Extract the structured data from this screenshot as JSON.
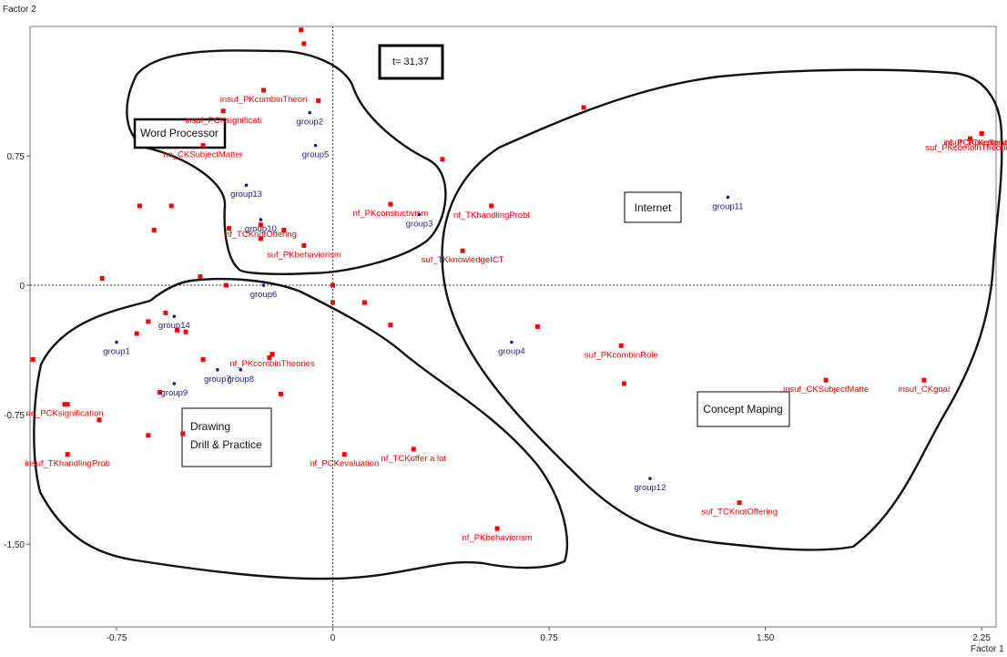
{
  "chart_data": {
    "type": "scatter",
    "xlabel": "Factor 1",
    "ylabel": "Factor 2",
    "xlim": [
      -1.05,
      2.3
    ],
    "ylim": [
      -1.98,
      1.5
    ],
    "x_ticks": [
      -0.75,
      0,
      0.75,
      1.5,
      2.25
    ],
    "x_tick_labels": [
      "-0.75",
      "0",
      "0.75",
      "1.50",
      "2.25"
    ],
    "y_ticks": [
      0.75,
      0,
      -0.75,
      -1.5
    ],
    "y_tick_labels": [
      "0.75",
      "0",
      "-0.75",
      "-1.50"
    ],
    "grid": false,
    "zero_lines": "dotted",
    "t_statistic": "t= 31,37",
    "colors": {
      "modalities": "#ff0000",
      "groups": "#1c1c8c"
    },
    "cluster_labels": [
      {
        "name": "word-processor",
        "lines": [
          "Word Processor"
        ]
      },
      {
        "name": "internet",
        "lines": [
          "Internet"
        ]
      },
      {
        "name": "concept-maping",
        "lines": [
          "Concept Maping"
        ]
      },
      {
        "name": "drawing-drill-practice",
        "lines": [
          "Drawing",
          "Drill & Practice"
        ]
      }
    ],
    "groups": [
      {
        "label": "group1",
        "x": -0.75,
        "y": -0.33
      },
      {
        "label": "group2",
        "x": -0.08,
        "y": 1.0
      },
      {
        "label": "group3",
        "x": 0.3,
        "y": 0.41
      },
      {
        "label": "group4",
        "x": 0.62,
        "y": -0.33
      },
      {
        "label": "group5",
        "x": -0.06,
        "y": 0.81
      },
      {
        "label": "group6",
        "x": -0.24,
        "y": 0.0
      },
      {
        "label": "group7",
        "x": -0.4,
        "y": -0.49
      },
      {
        "label": "group8",
        "x": -0.32,
        "y": -0.49
      },
      {
        "label": "group9",
        "x": -0.55,
        "y": -0.57
      },
      {
        "label": "group10",
        "x": -0.25,
        "y": 0.38
      },
      {
        "label": "group11",
        "x": 1.37,
        "y": 0.51
      },
      {
        "label": "group12",
        "x": 1.1,
        "y": -1.12
      },
      {
        "label": "group13",
        "x": -0.3,
        "y": 0.58
      },
      {
        "label": "group14",
        "x": -0.55,
        "y": -0.18
      }
    ],
    "modalities": [
      {
        "label": "insuf_PCKsignificati",
        "x": -0.38,
        "y": 1.01
      },
      {
        "label": "insuf_PKcombinTheori",
        "x": -0.24,
        "y": 1.13
      },
      {
        "label": "ne_CKSubjectMatter",
        "x": -0.45,
        "y": 0.81
      },
      {
        "label": "nf_TCKnotOffering",
        "x": -0.25,
        "y": 0.35
      },
      {
        "label": "suf_PKbehaviorism",
        "x": -0.1,
        "y": 0.23
      },
      {
        "label": "nf_PKconstuctivism",
        "x": 0.2,
        "y": 0.47
      },
      {
        "label": "nf_TKhandlingProbl",
        "x": 0.55,
        "y": 0.46
      },
      {
        "label": "suf_TKknowledgeICT",
        "x": 0.45,
        "y": 0.2
      },
      {
        "label": "insuf_TCKoffer a lot",
        "x": 2.25,
        "y": 0.88
      },
      {
        "label": "suf_PKcombinTheories",
        "x": 2.21,
        "y": 0.85
      },
      {
        "label": "nf_PCKpreparation",
        "x": 2.25,
        "y": 0.88
      },
      {
        "label": "suf_PKcombinRole",
        "x": 1.0,
        "y": -0.35
      },
      {
        "label": "insuf_CKSubjectMatte",
        "x": 1.71,
        "y": -0.55
      },
      {
        "label": "insuf_CKgoal",
        "x": 2.05,
        "y": -0.55
      },
      {
        "label": "suf_TCKnotOffering",
        "x": 1.41,
        "y": -1.26
      },
      {
        "label": "nf_PKcombinTheories",
        "x": -0.21,
        "y": -0.4
      },
      {
        "label": "ne_PCKsignification",
        "x": -0.93,
        "y": -0.69
      },
      {
        "label": "insuf_TKhandlingProb",
        "x": -0.92,
        "y": -0.98
      },
      {
        "label": "nf_PCKevaluation",
        "x": 0.04,
        "y": -0.98
      },
      {
        "label": "nf_TCKoffer a lot",
        "x": 0.28,
        "y": -0.95
      },
      {
        "label": "nf_PKbehaviorism",
        "x": 0.57,
        "y": -1.41
      }
    ],
    "unlabeled_points": [
      {
        "x": -0.11,
        "y": 1.48
      },
      {
        "x": -0.1,
        "y": 1.4
      },
      {
        "x": -0.05,
        "y": 1.07
      },
      {
        "x": 0.87,
        "y": 1.03
      },
      {
        "x": 0.38,
        "y": 0.73
      },
      {
        "x": -0.67,
        "y": 0.46
      },
      {
        "x": -0.56,
        "y": 0.46
      },
      {
        "x": -0.62,
        "y": 0.32
      },
      {
        "x": -0.36,
        "y": 0.33
      },
      {
        "x": -0.17,
        "y": 0.32
      },
      {
        "x": -0.25,
        "y": 0.27
      },
      {
        "x": -0.8,
        "y": 0.04
      },
      {
        "x": -0.46,
        "y": 0.05
      },
      {
        "x": -0.37,
        "y": 0.0
      },
      {
        "x": 0.0,
        "y": 0.0
      },
      {
        "x": 0.0,
        "y": -0.1
      },
      {
        "x": 0.11,
        "y": -0.1
      },
      {
        "x": 0.2,
        "y": -0.23
      },
      {
        "x": -0.58,
        "y": -0.16
      },
      {
        "x": -0.64,
        "y": -0.21
      },
      {
        "x": -0.68,
        "y": -0.28
      },
      {
        "x": -0.54,
        "y": -0.26
      },
      {
        "x": -0.51,
        "y": -0.27
      },
      {
        "x": -0.45,
        "y": -0.43
      },
      {
        "x": -0.21,
        "y": -0.4
      },
      {
        "x": -0.22,
        "y": -0.42
      },
      {
        "x": -0.18,
        "y": -0.63
      },
      {
        "x": -0.6,
        "y": -0.62
      },
      {
        "x": -0.52,
        "y": -0.86
      },
      {
        "x": -0.64,
        "y": -0.87
      },
      {
        "x": -0.92,
        "y": -0.69
      },
      {
        "x": -0.81,
        "y": -0.78
      },
      {
        "x": -1.04,
        "y": -0.43
      },
      {
        "x": 0.71,
        "y": -0.24
      },
      {
        "x": 1.01,
        "y": -0.57
      }
    ]
  }
}
